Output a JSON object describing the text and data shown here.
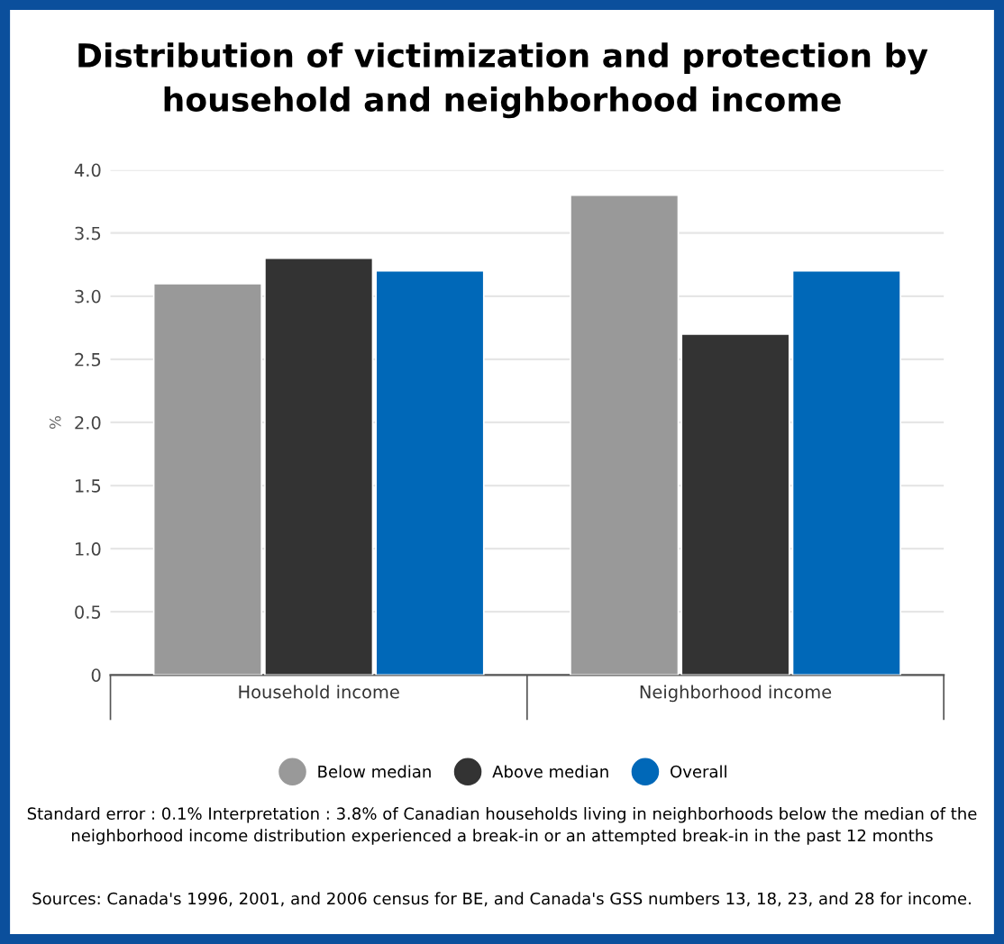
{
  "chart_data": {
    "type": "bar",
    "title": "Distribution of victimization and protection by\nhousehold and neighborhood income",
    "ylabel": "%",
    "categories": [
      "Household income",
      "Neighborhood income"
    ],
    "series": [
      {
        "name": "Below median",
        "color": "#999999",
        "values": [
          3.1,
          3.8
        ]
      },
      {
        "name": "Above median",
        "color": "#333333",
        "values": [
          3.3,
          2.7
        ]
      },
      {
        "name": "Overall",
        "color": "#0068b8",
        "values": [
          3.2,
          3.2
        ]
      }
    ],
    "ylim": [
      0,
      4
    ],
    "yticks": [
      0,
      0.5,
      {
        "value": 1,
        "label": "1.0"
      },
      1.5,
      {
        "value": 2,
        "label": "2.0"
      },
      2.5,
      {
        "value": 3,
        "label": "3.0"
      },
      3.5,
      {
        "value": 4,
        "label": "4.0"
      }
    ],
    "grid": "y",
    "legend": "bottom",
    "marker": "circle",
    "annotations": [
      "Standard error : 0.1% Interpretation : 3.8% of Canadian households living in neighborhoods below the median of the neighborhood income distribution experienced a break-in or an attempted break-in in the past 12 months",
      "Sources: Canada's 1996, 2001, and 2006 census for BE, and Canada's GSS numbers 13, 18, 23, and 28 for income."
    ]
  }
}
